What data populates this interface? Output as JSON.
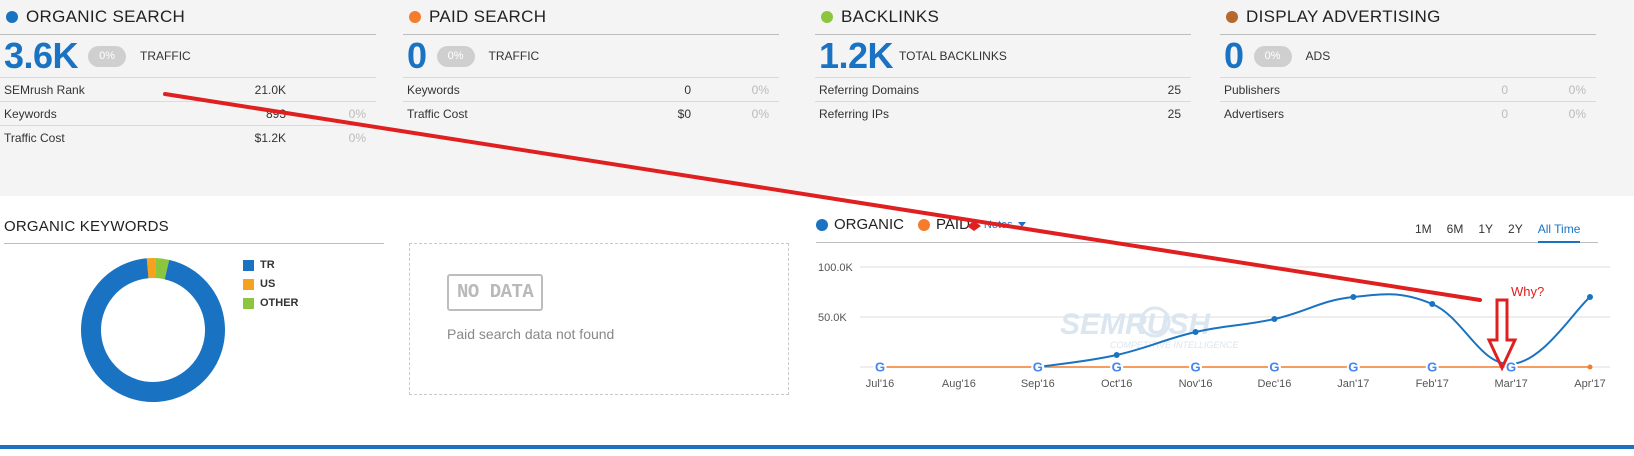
{
  "panels": [
    {
      "title": "ORGANIC SEARCH",
      "color": "#1a73c2",
      "big_value": "3.6K",
      "pct": "0%",
      "big_label": "TRAFFIC",
      "rows": [
        {
          "label": "SEMrush Rank",
          "value": "21.0K",
          "pct": ""
        },
        {
          "label": "Keywords",
          "value": "893",
          "pct": "0%"
        },
        {
          "label": "Traffic Cost",
          "value": "$1.2K",
          "pct": "0%"
        }
      ]
    },
    {
      "title": "PAID SEARCH",
      "color": "#f47c2c",
      "big_value": "0",
      "pct": "0%",
      "big_label": "TRAFFIC",
      "rows": [
        {
          "label": "Keywords",
          "value": "0",
          "pct": "0%"
        },
        {
          "label": "Traffic Cost",
          "value": "$0",
          "pct": "0%"
        }
      ]
    },
    {
      "title": "BACKLINKS",
      "color": "#8cc63e",
      "big_value": "1.2K",
      "pct": "",
      "big_label": "TOTAL BACKLINKS",
      "rows": [
        {
          "label": "Referring Domains",
          "value": "25",
          "pct": ""
        },
        {
          "label": "Referring IPs",
          "value": "25",
          "pct": ""
        }
      ]
    },
    {
      "title": "DISPLAY ADVERTISING",
      "color": "#b5692f",
      "big_value": "0",
      "pct": "0%",
      "big_label": "ADS",
      "rows": [
        {
          "label": "Publishers",
          "value": "0",
          "pct": "0%"
        },
        {
          "label": "Advertisers",
          "value": "0",
          "pct": "0%"
        }
      ]
    }
  ],
  "organic_keywords": {
    "title": "ORGANIC KEYWORDS",
    "legend": [
      {
        "label": "TR",
        "color": "#1a73c2",
        "share": 0.95
      },
      {
        "label": "US",
        "color": "#f5a31e",
        "share": 0.02
      },
      {
        "label": "OTHER",
        "color": "#8cc63e",
        "share": 0.03
      }
    ]
  },
  "paid_box": {
    "badge": "NO DATA",
    "message": "Paid search data not found"
  },
  "trend": {
    "series_labels": [
      {
        "label": "ORGANIC",
        "color": "#1a73c2"
      },
      {
        "label": "PAID",
        "color": "#f47c2c"
      }
    ],
    "notes_label": "Notes",
    "range_tabs": [
      "1M",
      "6M",
      "1Y",
      "2Y",
      "All Time"
    ],
    "active_range": "All Time",
    "watermark": "SEMRUSH",
    "watermark_sub": "COMPETITIVE INTELLIGENCE",
    "annotation": "Why?",
    "annotation_color": "#e02020"
  },
  "chart_data": {
    "type": "line",
    "x": [
      "Jul'16",
      "Aug'16",
      "Sep'16",
      "Oct'16",
      "Nov'16",
      "Dec'16",
      "Jan'17",
      "Feb'17",
      "Mar'17",
      "Apr'17"
    ],
    "y_ticks": [
      "100.0K",
      "50.0K"
    ],
    "ylim": [
      0,
      100000
    ],
    "series": [
      {
        "name": "ORGANIC",
        "color": "#1a73c2",
        "values": [
          null,
          null,
          0,
          12000,
          35000,
          48000,
          70000,
          63000,
          3000,
          70000
        ]
      },
      {
        "name": "PAID",
        "color": "#f47c2c",
        "values": [
          0,
          0,
          0,
          0,
          0,
          0,
          0,
          0,
          0,
          0
        ]
      }
    ],
    "google_marker_months": [
      "Jul'16",
      "Sep'16",
      "Oct'16",
      "Nov'16",
      "Dec'16",
      "Jan'17",
      "Feb'17",
      "Mar'17"
    ],
    "grid": true
  }
}
